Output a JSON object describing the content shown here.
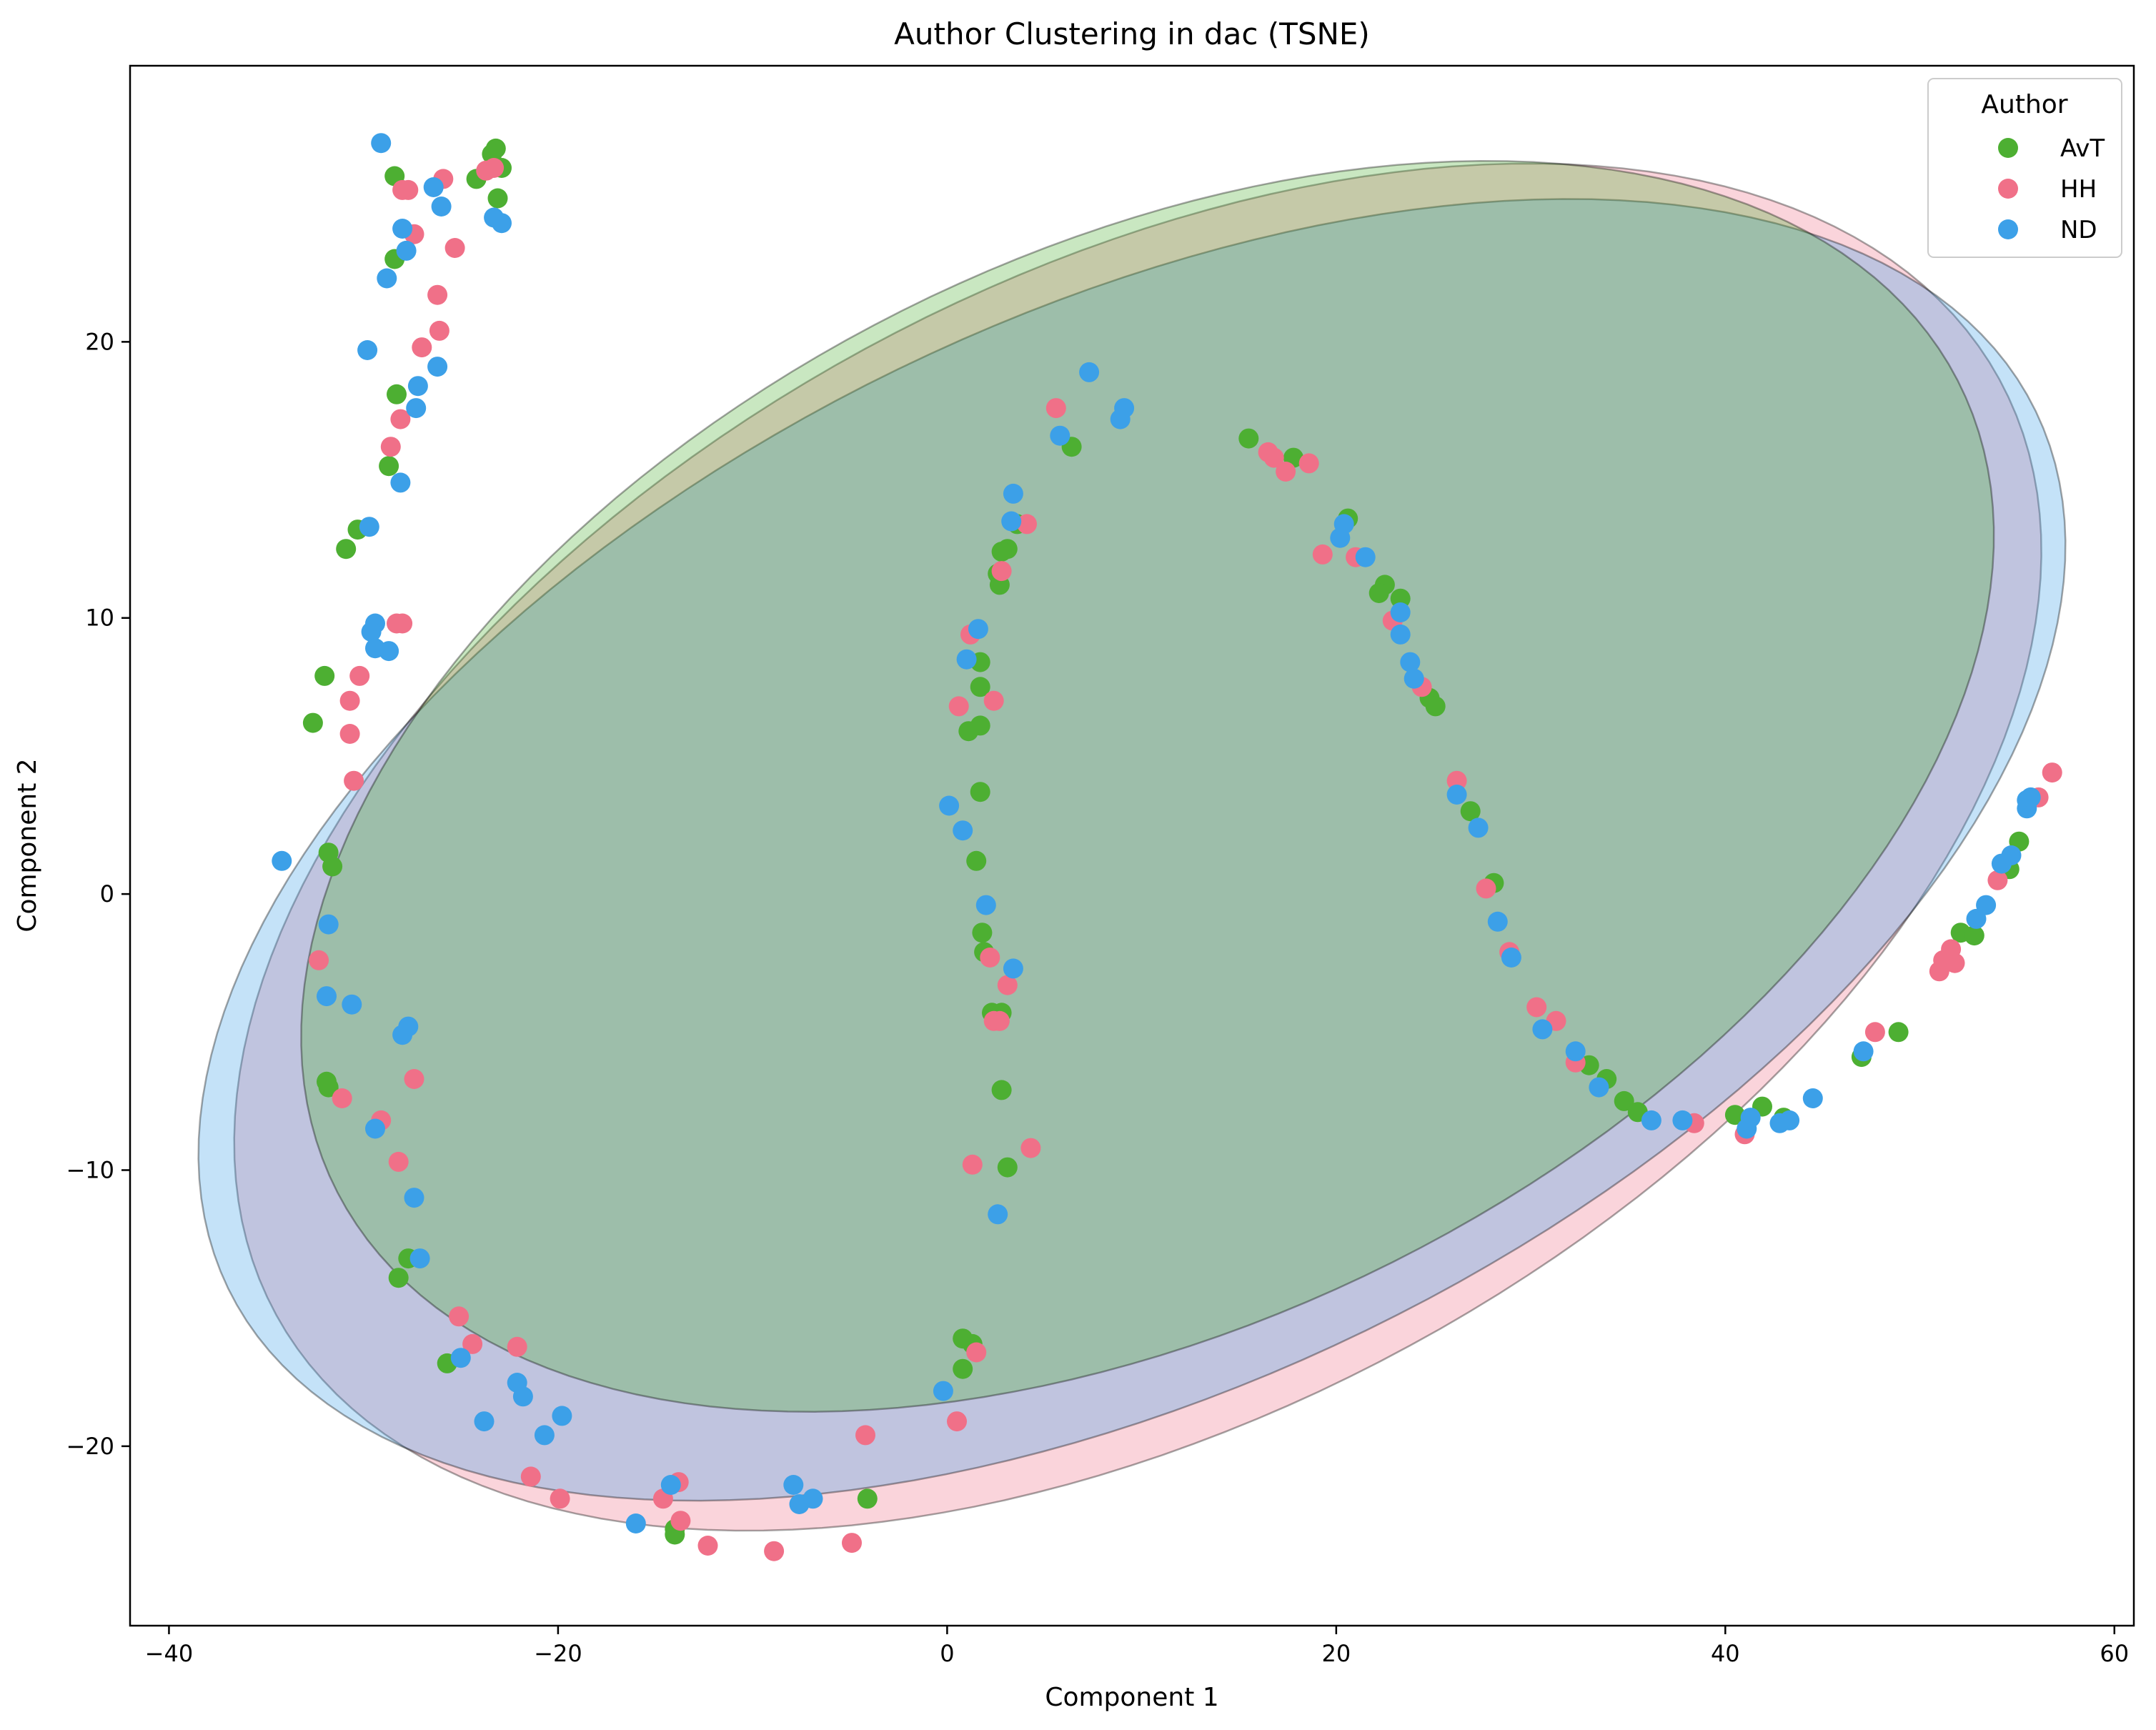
{
  "chart_data": {
    "type": "scatter",
    "title": "Author Clustering in dac (TSNE)",
    "xlabel": "Component 1",
    "ylabel": "Component 2",
    "xlim": [
      -42,
      61
    ],
    "ylim": [
      -26.5,
      30
    ],
    "xticks": [
      -40,
      -20,
      0,
      20,
      40,
      60
    ],
    "yticks": [
      -20,
      -10,
      0,
      10,
      20
    ],
    "grid": false,
    "legend": {
      "title": "Author",
      "placement": "top-right"
    },
    "series": [
      {
        "name": "AvT",
        "color": "#4daf32",
        "points": [
          [
            -23.2,
            27
          ],
          [
            -23.4,
            26.8
          ],
          [
            -22.9,
            26.3
          ],
          [
            -24.2,
            25.9
          ],
          [
            -28.4,
            26
          ],
          [
            -23.1,
            25.2
          ],
          [
            -28.4,
            23
          ],
          [
            -28.3,
            18.1
          ],
          [
            -28.7,
            15.5
          ],
          [
            -30.3,
            13.2
          ],
          [
            -30.9,
            12.5
          ],
          [
            -32,
            7.9
          ],
          [
            -32.6,
            6.2
          ],
          [
            -31.8,
            1.5
          ],
          [
            -31.6,
            1
          ],
          [
            -31.9,
            -6.8
          ],
          [
            -31.8,
            -7
          ],
          [
            -27.7,
            -13.2
          ],
          [
            -28.2,
            -13.9
          ],
          [
            -25.7,
            -17
          ],
          [
            -14,
            -23
          ],
          [
            -14,
            -23.2
          ],
          [
            -4.1,
            -21.9
          ],
          [
            0.8,
            -16.1
          ],
          [
            1.3,
            -16.3
          ],
          [
            0.8,
            -17.2
          ],
          [
            3.6,
            13.4
          ],
          [
            3.1,
            12.5
          ],
          [
            2.8,
            12.4
          ],
          [
            2.6,
            11.6
          ],
          [
            2.7,
            11.2
          ],
          [
            1.7,
            8.4
          ],
          [
            1.7,
            7.5
          ],
          [
            1.7,
            6.1
          ],
          [
            1.1,
            5.9
          ],
          [
            1.7,
            3.7
          ],
          [
            1.5,
            1.2
          ],
          [
            1.8,
            -1.4
          ],
          [
            1.9,
            -2.1
          ],
          [
            2.3,
            -4.3
          ],
          [
            2.8,
            -4.3
          ],
          [
            2.8,
            -7.1
          ],
          [
            3.1,
            -9.9
          ],
          [
            6.4,
            16.2
          ],
          [
            15.5,
            16.5
          ],
          [
            17.8,
            15.8
          ],
          [
            20.6,
            13.6
          ],
          [
            22.5,
            11.2
          ],
          [
            22.2,
            10.9
          ],
          [
            23.3,
            10.7
          ],
          [
            24.8,
            7.1
          ],
          [
            25.1,
            6.8
          ],
          [
            26.9,
            3
          ],
          [
            28.1,
            0.4
          ],
          [
            33,
            -6.2
          ],
          [
            33.9,
            -6.7
          ],
          [
            34.8,
            -7.5
          ],
          [
            35.5,
            -7.9
          ],
          [
            40.5,
            -8
          ],
          [
            41.9,
            -7.7
          ],
          [
            43,
            -8.1
          ],
          [
            47,
            -5.9
          ],
          [
            48.9,
            -5
          ],
          [
            52.1,
            -1.4
          ],
          [
            52.8,
            -1.5
          ],
          [
            54.6,
            0.9
          ],
          [
            55.1,
            1.9
          ]
        ]
      },
      {
        "name": "HH",
        "color": "#f07088",
        "points": [
          [
            -23.7,
            26.2
          ],
          [
            -23.3,
            26.3
          ],
          [
            -25.9,
            25.9
          ],
          [
            -28,
            25.5
          ],
          [
            -27.7,
            25.5
          ],
          [
            -27.4,
            23.9
          ],
          [
            -25.3,
            23.4
          ],
          [
            -26.2,
            21.7
          ],
          [
            -26.1,
            20.4
          ],
          [
            -27,
            19.8
          ],
          [
            -28.1,
            17.2
          ],
          [
            -28.6,
            16.2
          ],
          [
            -28.3,
            9.8
          ],
          [
            -28,
            9.8
          ],
          [
            -30.2,
            7.9
          ],
          [
            -30.7,
            7
          ],
          [
            -30.7,
            5.8
          ],
          [
            -30.5,
            4.1
          ],
          [
            -32.3,
            -2.4
          ],
          [
            -31.1,
            -7.4
          ],
          [
            -29.1,
            -8.2
          ],
          [
            -28.2,
            -9.7
          ],
          [
            -27.4,
            -6.7
          ],
          [
            -25.1,
            -15.3
          ],
          [
            -24.4,
            -16.3
          ],
          [
            -22.1,
            -16.4
          ],
          [
            -21.4,
            -21.1
          ],
          [
            -19.9,
            -21.9
          ],
          [
            -14.6,
            -21.9
          ],
          [
            -13.8,
            -21.3
          ],
          [
            -13.7,
            -22.7
          ],
          [
            -12.3,
            -23.6
          ],
          [
            -8.9,
            -23.8
          ],
          [
            -4.9,
            -23.5
          ],
          [
            -4.2,
            -19.6
          ],
          [
            0.5,
            -19.1
          ],
          [
            1.5,
            -16.6
          ],
          [
            1.3,
            -9.8
          ],
          [
            4.3,
            -9.2
          ],
          [
            4.1,
            13.4
          ],
          [
            2.8,
            11.7
          ],
          [
            1.2,
            9.4
          ],
          [
            0.6,
            6.8
          ],
          [
            2.4,
            7
          ],
          [
            2.2,
            -2.3
          ],
          [
            3.1,
            -3.3
          ],
          [
            2.4,
            -4.6
          ],
          [
            2.7,
            -4.6
          ],
          [
            5.6,
            17.6
          ],
          [
            16.5,
            16
          ],
          [
            16.8,
            15.8
          ],
          [
            17.4,
            15.3
          ],
          [
            18.6,
            15.6
          ],
          [
            19.3,
            12.3
          ],
          [
            21,
            12.2
          ],
          [
            22.9,
            9.9
          ],
          [
            24.4,
            7.5
          ],
          [
            26.2,
            4.1
          ],
          [
            27.7,
            0.2
          ],
          [
            28.9,
            -2.1
          ],
          [
            30.3,
            -4.1
          ],
          [
            31.3,
            -4.6
          ],
          [
            32.3,
            -6.1
          ],
          [
            38.4,
            -8.3
          ],
          [
            41,
            -8.7
          ],
          [
            47.7,
            -5
          ],
          [
            51,
            -2.8
          ],
          [
            51.2,
            -2.4
          ],
          [
            51.6,
            -2
          ],
          [
            51.8,
            -2.5
          ],
          [
            54,
            0.5
          ],
          [
            56.1,
            3.5
          ],
          [
            56.8,
            4.4
          ]
        ]
      },
      {
        "name": "ND",
        "color": "#3ca0e8",
        "points": [
          [
            -29.1,
            27.2
          ],
          [
            -26.4,
            25.6
          ],
          [
            -26,
            24.9
          ],
          [
            -23.3,
            24.5
          ],
          [
            -22.9,
            24.3
          ],
          [
            -28,
            24.1
          ],
          [
            -27.8,
            23.3
          ],
          [
            -28.8,
            22.3
          ],
          [
            -29.8,
            19.7
          ],
          [
            -26.2,
            19.1
          ],
          [
            -27.2,
            18.4
          ],
          [
            -27.3,
            17.6
          ],
          [
            -28.1,
            14.9
          ],
          [
            -29.7,
            13.3
          ],
          [
            -29.4,
            9.8
          ],
          [
            -29.6,
            9.5
          ],
          [
            -29.4,
            8.9
          ],
          [
            -28.7,
            8.8
          ],
          [
            -34.2,
            1.2
          ],
          [
            -31.8,
            -1.1
          ],
          [
            -31.9,
            -3.7
          ],
          [
            -30.6,
            -4
          ],
          [
            -28,
            -5.1
          ],
          [
            -27.7,
            -4.8
          ],
          [
            -29.4,
            -8.5
          ],
          [
            -27.4,
            -11
          ],
          [
            -27.1,
            -13.2
          ],
          [
            -25,
            -16.8
          ],
          [
            -22.1,
            -17.7
          ],
          [
            -21.8,
            -18.2
          ],
          [
            -23.8,
            -19.1
          ],
          [
            -20.7,
            -19.6
          ],
          [
            -19.8,
            -18.9
          ],
          [
            -16,
            -22.8
          ],
          [
            -14.2,
            -21.4
          ],
          [
            -7.9,
            -21.4
          ],
          [
            -7.6,
            -22.1
          ],
          [
            -6.9,
            -21.9
          ],
          [
            -0.2,
            -18
          ],
          [
            3.4,
            14.5
          ],
          [
            3.3,
            13.5
          ],
          [
            1.6,
            9.6
          ],
          [
            1,
            8.5
          ],
          [
            0.1,
            3.2
          ],
          [
            0.8,
            2.3
          ],
          [
            2,
            -0.4
          ],
          [
            3.4,
            -2.7
          ],
          [
            2.6,
            -11.6
          ],
          [
            7.3,
            18.9
          ],
          [
            5.8,
            16.6
          ],
          [
            8.9,
            17.2
          ],
          [
            9.1,
            17.6
          ],
          [
            20.4,
            13.4
          ],
          [
            20.2,
            12.9
          ],
          [
            21.5,
            12.2
          ],
          [
            23.3,
            10.2
          ],
          [
            23.3,
            9.4
          ],
          [
            23.8,
            8.4
          ],
          [
            24,
            7.8
          ],
          [
            26.2,
            3.6
          ],
          [
            27.3,
            2.4
          ],
          [
            28.3,
            -1
          ],
          [
            29,
            -2.3
          ],
          [
            30.6,
            -4.9
          ],
          [
            32.3,
            -5.7
          ],
          [
            33.5,
            -7
          ],
          [
            36.2,
            -8.2
          ],
          [
            37.8,
            -8.2
          ],
          [
            41.1,
            -8.5
          ],
          [
            41.3,
            -8.1
          ],
          [
            42.8,
            -8.3
          ],
          [
            43.3,
            -8.2
          ],
          [
            44.5,
            -7.4
          ],
          [
            47.1,
            -5.7
          ],
          [
            52.9,
            -0.9
          ],
          [
            53.4,
            -0.4
          ],
          [
            54.2,
            1.1
          ],
          [
            54.7,
            1.4
          ],
          [
            55.5,
            3.1
          ],
          [
            55.5,
            3.4
          ],
          [
            55.7,
            3.5
          ]
        ]
      }
    ],
    "ellipses": [
      {
        "series": "HH",
        "color": "#f07088",
        "cx": 9.8,
        "cy": 1.7,
        "rx": 48.0,
        "ry": 21.6,
        "angle_deg": 16.4
      },
      {
        "series": "ND",
        "color": "#3ca0e8",
        "cx": 9.5,
        "cy": 1.6,
        "rx": 49.5,
        "ry": 20.2,
        "angle_deg": 15.6
      },
      {
        "series": "AvT",
        "color": "#4daf32",
        "cx": 10.3,
        "cy": 3.9,
        "rx": 44.7,
        "ry": 20.2,
        "angle_deg": 14.9
      }
    ]
  }
}
